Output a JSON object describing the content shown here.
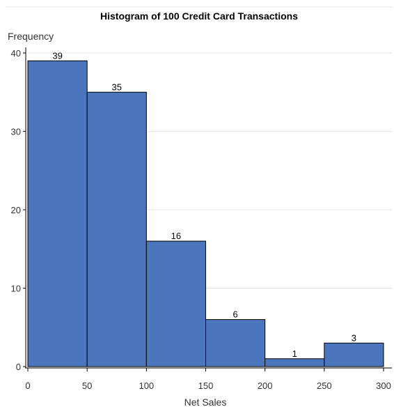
{
  "chart_data": {
    "type": "bar",
    "title": "Histogram of 100 Credit Card Transactions",
    "xlabel": "Net Sales",
    "ylabel": "Frequency",
    "bins": [
      {
        "start": 0,
        "end": 50,
        "value": 39,
        "label": "39"
      },
      {
        "start": 50,
        "end": 100,
        "value": 35,
        "label": "35"
      },
      {
        "start": 100,
        "end": 150,
        "value": 16,
        "label": "16"
      },
      {
        "start": 150,
        "end": 200,
        "value": 6,
        "label": "6"
      },
      {
        "start": 200,
        "end": 250,
        "value": 1,
        "label": "1"
      },
      {
        "start": 250,
        "end": 300,
        "value": 3,
        "label": "3"
      }
    ],
    "xlim": [
      0,
      300
    ],
    "ylim": [
      0,
      40
    ],
    "x_ticks": [
      "0",
      "50",
      "100",
      "150",
      "200",
      "250",
      "300"
    ],
    "y_ticks": [
      "0",
      "10",
      "20",
      "30",
      "40"
    ],
    "grid": "horizontal",
    "colors": {
      "bar_fill": "#4A76BD",
      "bar_stroke": "#000000",
      "grid": "#E6E6E6",
      "axis": "#000000"
    }
  }
}
